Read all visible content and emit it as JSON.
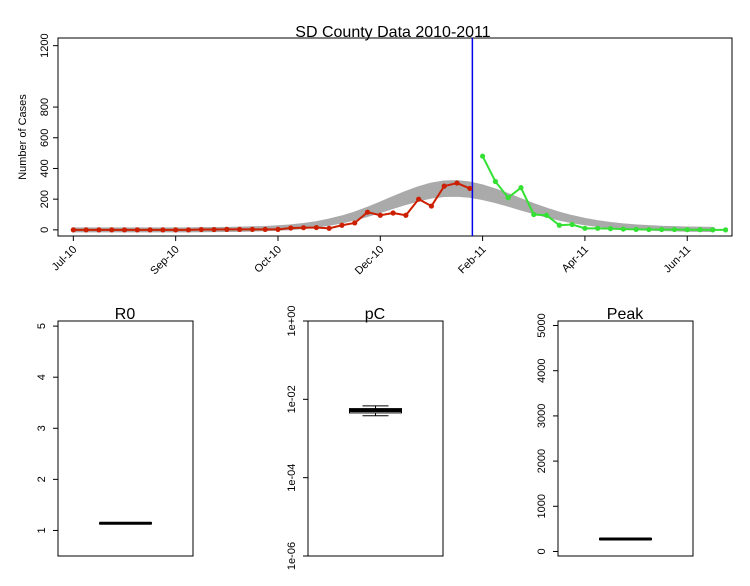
{
  "chart_data": [
    {
      "type": "line",
      "title": "SD County Data 2010-2011",
      "xlabel": "",
      "ylabel": "Number of Cases",
      "ylim": [
        -40,
        1250
      ],
      "y_ticks": [
        0,
        200,
        400,
        600,
        800,
        1200
      ],
      "x_ticks": [
        "Jul-10",
        "Sep-10",
        "Oct-10",
        "Dec-10",
        "Feb-11",
        "Apr-11",
        "Jun-11"
      ],
      "x_tick_weeks": [
        0,
        8,
        16,
        24,
        32,
        40,
        48
      ],
      "weeks_range": [
        -1.2,
        51.5
      ],
      "vline_week": 31.2,
      "colors": {
        "observed": "#cc1f00",
        "forecast": "#33e033",
        "fit_band": "#aaaaaa",
        "vline": "#0000ee"
      },
      "series": [
        {
          "values": [
            0,
            0,
            0,
            0,
            0,
            0,
            0,
            0,
            0,
            0,
            2,
            2,
            3,
            3,
            3,
            3,
            3,
            12,
            14,
            15,
            10,
            30,
            45,
            115,
            95,
            110,
            95,
            200,
            155,
            285,
            305,
            270
          ]
        },
        {
          "x_offset": 32,
          "values": [
            480,
            315,
            210,
            275,
            100,
            95,
            30,
            35,
            10,
            10,
            8,
            5,
            3,
            2,
            2,
            2,
            1,
            1,
            0,
            0
          ]
        },
        {
          "type": "band",
          "values": [
            0,
            0,
            0,
            0,
            0,
            0,
            0,
            0,
            0,
            0,
            1,
            2,
            3,
            4,
            6,
            8,
            12,
            17,
            25,
            35,
            50,
            68,
            90,
            117,
            147,
            178,
            208,
            235,
            256,
            268,
            270,
            262,
            245,
            222,
            195,
            166,
            138,
            112,
            89,
            70,
            54,
            41,
            31,
            23,
            17,
            13,
            9,
            7,
            5,
            4,
            3
          ],
          "half_width": 0.14
        }
      ]
    },
    {
      "type": "boxplot",
      "title": "R0",
      "ylim": [
        0.5,
        5.1
      ],
      "y_ticks": [
        1,
        2,
        3,
        4,
        5
      ],
      "scale": "linear",
      "median": 1.14,
      "q1": 1.13,
      "q3": 1.15,
      "whisker_low": 1.13,
      "whisker_high": 1.15
    },
    {
      "type": "boxplot",
      "title": "pC",
      "scale": "log",
      "ylim": [
        1e-06,
        1.0
      ],
      "y_ticks": [
        1e-06,
        0.0001,
        0.01,
        1
      ],
      "y_tick_labels": [
        "1e-06",
        "1e-04",
        "1e-02",
        "1e+00"
      ],
      "median": 0.0052,
      "q1": 0.0045,
      "q3": 0.0058,
      "whisker_low": 0.0038,
      "whisker_high": 0.0068
    },
    {
      "type": "boxplot",
      "title": "Peak",
      "ylim": [
        -100,
        5100
      ],
      "y_ticks": [
        0,
        1000,
        2000,
        3000,
        4000,
        5000
      ],
      "scale": "linear",
      "median": 275,
      "q1": 262,
      "q3": 288,
      "whisker_low": 255,
      "whisker_high": 296
    }
  ]
}
